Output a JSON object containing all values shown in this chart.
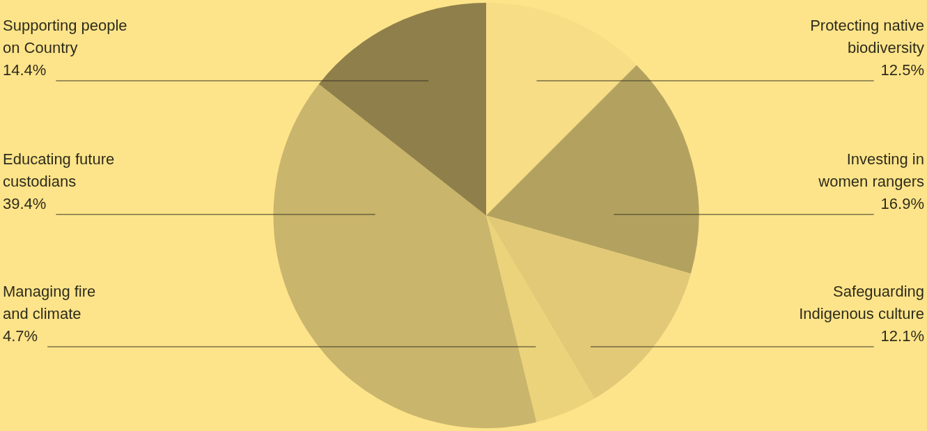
{
  "chart_data": {
    "type": "pie",
    "categories": [
      "Protecting native\nbiodiversity",
      "Investing in\nwomen rangers",
      "Safeguarding\nIndigenous culture",
      "Managing fire\nand climate",
      "Educating future\ncustodians",
      "Supporting people\non Country"
    ],
    "values": [
      12.5,
      16.9,
      12.1,
      4.7,
      39.4,
      14.4
    ],
    "colors": [
      "#f6dd86",
      "#b3a25f",
      "#e2c978",
      "#ebd37c",
      "#c9b56b",
      "#8f7f4b"
    ],
    "value_labels": [
      "12.5%",
      "16.9%",
      "12.1%",
      "4.7%",
      "39.4%",
      "14.4%"
    ],
    "legend": false
  }
}
